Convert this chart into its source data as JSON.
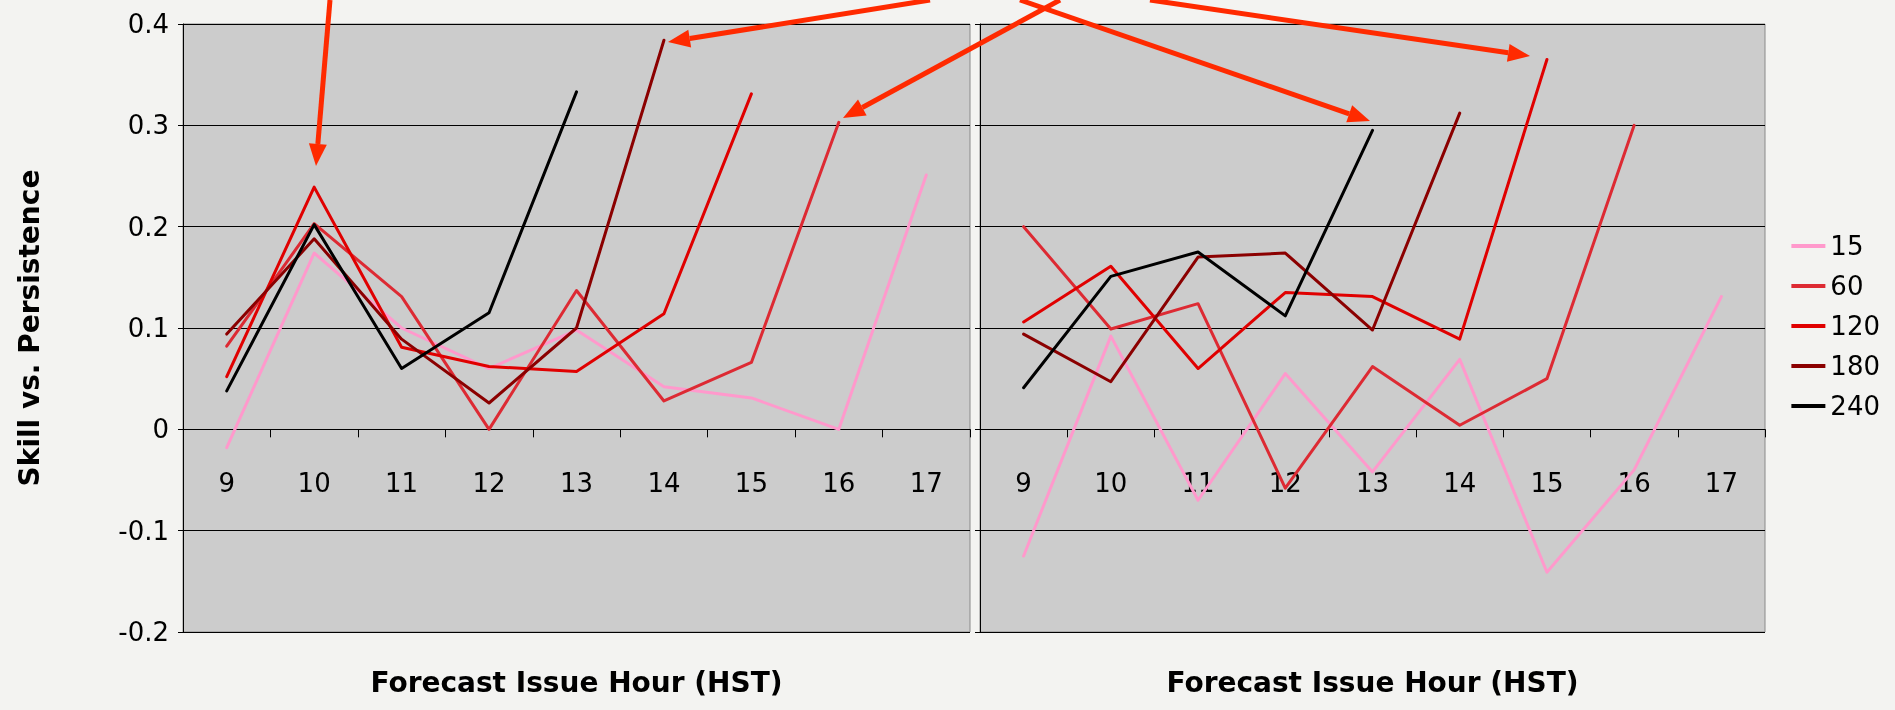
{
  "chart_data": [
    {
      "type": "line",
      "xlabel": "Forecast Issue Hour (HST)",
      "ylabel": "Skill vs. Persistence",
      "categories": [
        "9",
        "10",
        "11",
        "12",
        "13",
        "14",
        "15",
        "16",
        "17"
      ],
      "series": [
        {
          "color": "#ff99cc",
          "values": [
            -0.018,
            0.174,
            0.1,
            0.06,
            0.098,
            0.042,
            0.031,
            0,
            0.251
          ]
        },
        {
          "color": "#dd2a33",
          "values": [
            0.082,
            0.203,
            0.131,
            0,
            0.137,
            0.028,
            0.066,
            0.303,
            null
          ]
        },
        {
          "color": "#e00000",
          "values": [
            0.052,
            0.239,
            0.081,
            0.062,
            0.057,
            0.114,
            0.331,
            null,
            null
          ]
        },
        {
          "color": "#8b0000",
          "values": [
            0.094,
            0.188,
            0.089,
            0.026,
            0.1,
            0.384,
            null,
            null,
            null
          ]
        },
        {
          "color": "#000000",
          "values": [
            0.038,
            0.202,
            0.06,
            0.115,
            0.333,
            null,
            null,
            null,
            null
          ]
        }
      ],
      "ylim": [
        -0.2,
        0.4
      ],
      "yticks": [
        -0.2,
        -0.1,
        0,
        0.1,
        0.2,
        0.3,
        0.4
      ],
      "grid": "y",
      "legend": false,
      "marker": "none",
      "line_style": "solid"
    },
    {
      "type": "line",
      "xlabel": "Forecast Issue Hour (HST)",
      "categories": [
        "9",
        "10",
        "11",
        "12",
        "13",
        "14",
        "15",
        "16",
        "17"
      ],
      "series": [
        {
          "name": "15",
          "color": "#ff99cc",
          "values": [
            -0.125,
            0.092,
            -0.07,
            0.055,
            -0.042,
            0.069,
            -0.141,
            -0.04,
            0.131
          ]
        },
        {
          "name": "60",
          "color": "#dd2a33",
          "values": [
            0.2,
            0.099,
            0.124,
            -0.058,
            0.062,
            0.004,
            0.05,
            0.3,
            null
          ]
        },
        {
          "name": "120",
          "color": "#e00000",
          "values": [
            0.106,
            0.161,
            0.06,
            0.135,
            0.131,
            0.089,
            0.365,
            null,
            null
          ]
        },
        {
          "name": "180",
          "color": "#8b0000",
          "values": [
            0.094,
            0.047,
            0.17,
            0.174,
            0.098,
            0.312,
            null,
            null,
            null
          ]
        },
        {
          "name": "240",
          "color": "#000000",
          "values": [
            0.041,
            0.151,
            0.175,
            0.112,
            0.295,
            null,
            null,
            null,
            null
          ]
        }
      ],
      "ylim": [
        -0.2,
        0.4
      ],
      "yticks": [
        -0.2,
        -0.1,
        0,
        0.1,
        0.2,
        0.3,
        0.4
      ],
      "grid": "y",
      "legend": "right",
      "marker": "none",
      "line_style": "solid",
      "tick_labels": "x"
    }
  ]
}
